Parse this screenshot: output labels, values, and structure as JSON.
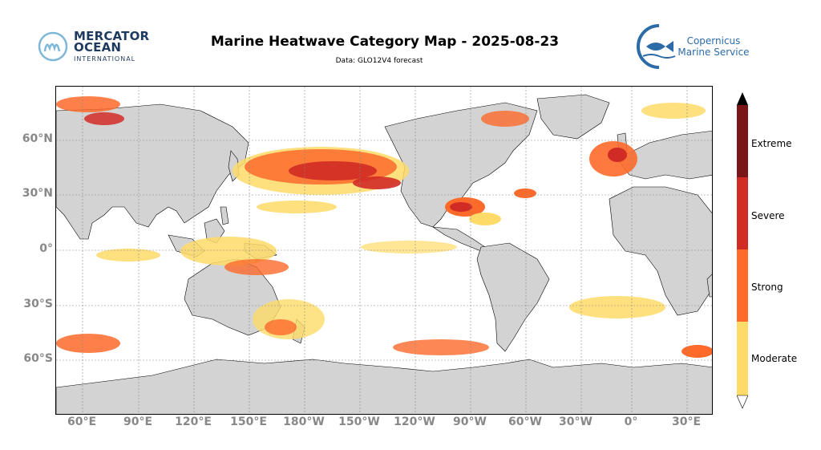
{
  "title": "Marine Heatwave Category Map - 2025-08-23",
  "subtitle": "Data: GLO12V4 forecast",
  "logos": {
    "mercator_line1": "MERCATOR",
    "mercator_line2": "OCEAN",
    "mercator_line3": "INTERNATIONAL",
    "copernicus_line1": "Copernicus",
    "copernicus_line2": "Marine Service"
  },
  "map": {
    "lat_labels": [
      "60°N",
      "30°N",
      "0°",
      "30°S",
      "60°S"
    ],
    "lon_labels": [
      "60°E",
      "90°E",
      "120°E",
      "150°E",
      "180°W",
      "150°W",
      "120°W",
      "90°W",
      "60°W",
      "30°W",
      "0°",
      "30°E"
    ],
    "land_color": "#d3d3d3",
    "ocean_color": "#ffffff"
  },
  "colorbar": {
    "categories": [
      "Moderate",
      "Strong",
      "Severe",
      "Extreme"
    ],
    "colors": [
      "#fedb68",
      "#fd6a2a",
      "#d12b26",
      "#7a1618"
    ],
    "extend_colors": {
      "min": "#ffffff",
      "max": "#000000"
    }
  }
}
